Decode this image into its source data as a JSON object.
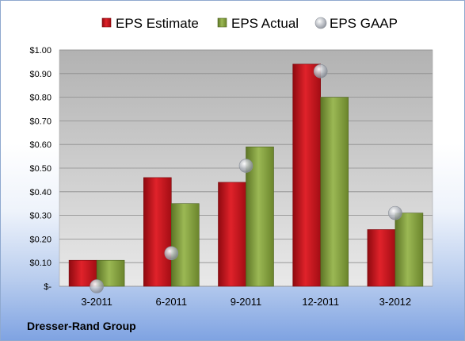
{
  "chart_data": {
    "type": "bar",
    "categories": [
      "3-2011",
      "6-2011",
      "9-2011",
      "12-2011",
      "3-2012"
    ],
    "series": [
      {
        "name": "EPS Estimate",
        "kind": "bar",
        "color": "#c8141e",
        "values": [
          0.11,
          0.46,
          0.44,
          0.94,
          0.24
        ]
      },
      {
        "name": "EPS Actual",
        "kind": "bar",
        "color": "#7d9a3a",
        "values": [
          0.11,
          0.35,
          0.59,
          0.8,
          0.31
        ]
      },
      {
        "name": "EPS GAAP",
        "kind": "marker",
        "color": "#9aa0a8",
        "values": [
          0.0,
          0.14,
          0.51,
          0.91,
          0.31
        ]
      }
    ],
    "ylim": [
      0,
      1.0
    ],
    "yticks": [
      {
        "value": 0.0,
        "label": "$-"
      },
      {
        "value": 0.1,
        "label": "$0.10"
      },
      {
        "value": 0.2,
        "label": "$0.20"
      },
      {
        "value": 0.3,
        "label": "$0.30"
      },
      {
        "value": 0.4,
        "label": "$0.40"
      },
      {
        "value": 0.5,
        "label": "$0.50"
      },
      {
        "value": 0.6,
        "label": "$0.60"
      },
      {
        "value": 0.7,
        "label": "$0.70"
      },
      {
        "value": 0.8,
        "label": "$0.80"
      },
      {
        "value": 0.9,
        "label": "$0.90"
      },
      {
        "value": 1.0,
        "label": "$1.00"
      }
    ],
    "grid": true,
    "legend_position": "top"
  },
  "footer": {
    "company": "Dresser-Rand Group"
  }
}
